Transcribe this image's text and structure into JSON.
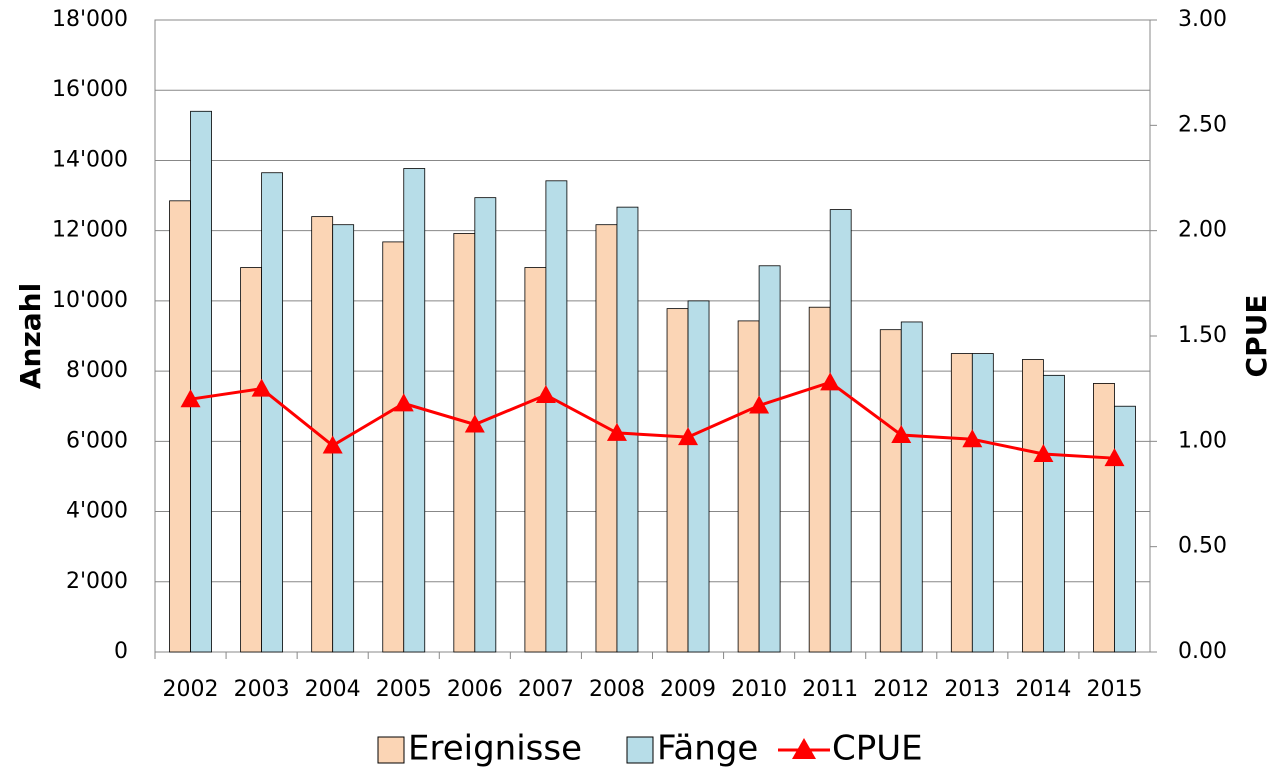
{
  "chart_data": {
    "type": "bar_line",
    "y_label": "Anzahl",
    "y2_label": "CPUE",
    "categories": [
      "2002",
      "2003",
      "2004",
      "2005",
      "2006",
      "2007",
      "2008",
      "2009",
      "2010",
      "2011",
      "2012",
      "2013",
      "2014",
      "2015"
    ],
    "series": [
      {
        "name": "Ereignisse",
        "type": "bar",
        "color": "#fbd5b5",
        "values": [
          12850,
          10950,
          12400,
          11680,
          11920,
          10950,
          12170,
          9780,
          9430,
          9820,
          9180,
          8500,
          8330,
          7650
        ]
      },
      {
        "name": "Fänge",
        "type": "bar",
        "color": "#b7dde8",
        "values": [
          15400,
          13650,
          12170,
          13770,
          12940,
          13420,
          12670,
          10000,
          11000,
          12600,
          9400,
          8500,
          7880,
          7000
        ]
      },
      {
        "name": "CPUE",
        "type": "line",
        "axis": "y2",
        "color": "#ff0000",
        "values": [
          1.2,
          1.25,
          0.98,
          1.18,
          1.08,
          1.22,
          1.04,
          1.02,
          1.17,
          1.28,
          1.03,
          1.01,
          0.94,
          0.92
        ]
      }
    ],
    "ylim": [
      0,
      18000
    ],
    "yticks": [
      0,
      {
        "value": 2000,
        "label": "2'000"
      },
      {
        "value": 4000,
        "label": "4'000"
      },
      {
        "value": 6000,
        "label": "6'000"
      },
      {
        "value": 8000,
        "label": "8'000"
      },
      {
        "value": 10000,
        "label": "10'000"
      },
      {
        "value": 12000,
        "label": "12'000"
      },
      {
        "value": 14000,
        "label": "14'000"
      },
      {
        "value": 16000,
        "label": "16'000"
      },
      {
        "value": 18000,
        "label": "18'000"
      }
    ],
    "y2lim": [
      0,
      3
    ],
    "y2ticks": [
      {
        "value": 0,
        "label": "0.00"
      },
      {
        "value": 0.5,
        "label": "0.50"
      },
      {
        "value": 1,
        "label": "1.00"
      },
      {
        "value": 1.5,
        "label": "1.50"
      },
      {
        "value": 2,
        "label": "2.00"
      },
      {
        "value": 2.5,
        "label": "2.50"
      },
      {
        "value": 3,
        "label": "3.00"
      }
    ],
    "grid": true,
    "legend": "bottom"
  }
}
